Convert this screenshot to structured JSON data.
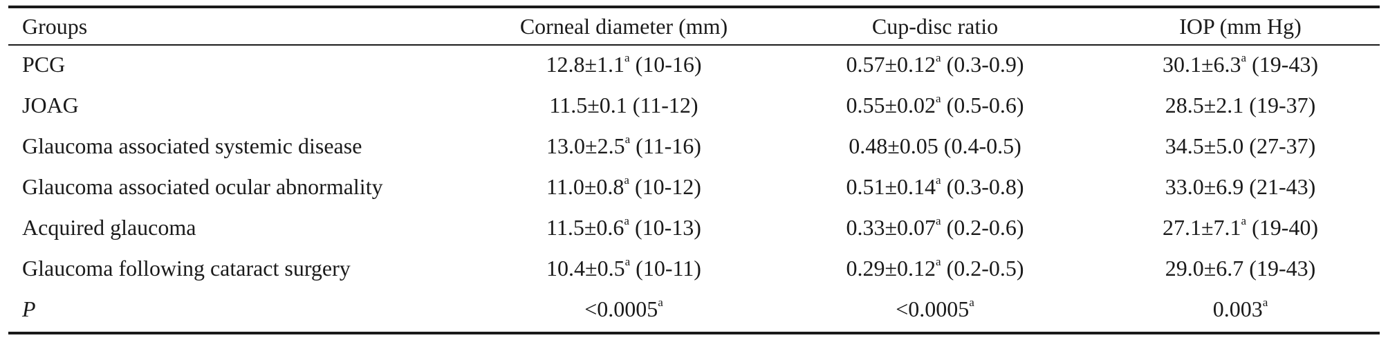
{
  "table": {
    "headers": [
      "Groups",
      "Corneal diameter (mm)",
      "Cup-disc ratio",
      "IOP (mm Hg)"
    ],
    "rows": [
      {
        "group": "PCG",
        "corneal": {
          "value": "12.8±1.1",
          "sup": "a",
          "range": " (10-16)"
        },
        "cupdisc": {
          "value": "0.57±0.12",
          "sup": "a",
          "range": " (0.3-0.9)"
        },
        "iop": {
          "value": "30.1±6.3",
          "sup": "a",
          "range": " (19-43)"
        }
      },
      {
        "group": "JOAG",
        "corneal": {
          "value": "11.5±0.1 (11-12)",
          "sup": "",
          "range": ""
        },
        "cupdisc": {
          "value": "0.55±0.02",
          "sup": "a",
          "range": " (0.5-0.6)"
        },
        "iop": {
          "value": "28.5±2.1 (19-37)",
          "sup": "",
          "range": ""
        }
      },
      {
        "group": "Glaucoma associated systemic disease",
        "corneal": {
          "value": "13.0±2.5",
          "sup": "a",
          "range": " (11-16)"
        },
        "cupdisc": {
          "value": "0.48±0.05 (0.4-0.5)",
          "sup": "",
          "range": ""
        },
        "iop": {
          "value": "34.5±5.0 (27-37)",
          "sup": "",
          "range": ""
        }
      },
      {
        "group": "Glaucoma associated ocular abnormality",
        "corneal": {
          "value": "11.0±0.8",
          "sup": "a",
          "range": " (10-12)"
        },
        "cupdisc": {
          "value": "0.51±0.14",
          "sup": "a",
          "range": " (0.3-0.8)"
        },
        "iop": {
          "value": "33.0±6.9 (21-43)",
          "sup": "",
          "range": ""
        }
      },
      {
        "group": "Acquired glaucoma",
        "corneal": {
          "value": "11.5±0.6",
          "sup": "a",
          "range": " (10-13)"
        },
        "cupdisc": {
          "value": "0.33±0.07",
          "sup": "a",
          "range": " (0.2-0.6)"
        },
        "iop": {
          "value": "27.1±7.1",
          "sup": "a",
          "range": " (19-40)"
        }
      },
      {
        "group": "Glaucoma following cataract surgery",
        "corneal": {
          "value": "10.4±0.5",
          "sup": "a",
          "range": " (10-11)"
        },
        "cupdisc": {
          "value": "0.29±0.12",
          "sup": "a",
          "range": " (0.2-0.5)"
        },
        "iop": {
          "value": "29.0±6.7 (19-43)",
          "sup": "",
          "range": ""
        }
      },
      {
        "group": "P",
        "italic": true,
        "corneal": {
          "value": "<0.0005",
          "sup": "a",
          "range": ""
        },
        "cupdisc": {
          "value": "<0.0005",
          "sup": "a",
          "range": ""
        },
        "iop": {
          "value": "0.003",
          "sup": "a",
          "range": ""
        }
      }
    ]
  }
}
